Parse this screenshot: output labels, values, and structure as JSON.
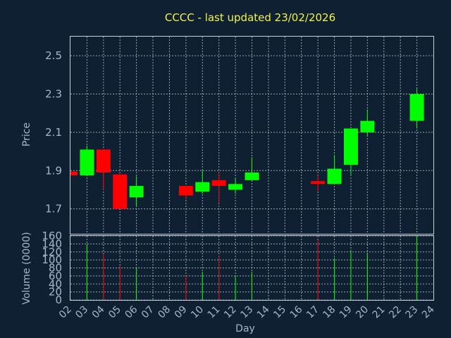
{
  "chart_data": {
    "type": "candlestick",
    "title": "CCCC - last updated 23/02/2026",
    "xlabel": "Day",
    "price_panel": {
      "ylabel": "Price",
      "ylim": [
        1.57,
        2.6
      ],
      "yticks": [
        "1.7",
        "1.9",
        "2.1",
        "2.3",
        "2.5"
      ]
    },
    "volume_panel": {
      "ylabel": "Volume (0000)",
      "ylim": [
        0,
        160
      ],
      "yticks": [
        "0",
        "20",
        "40",
        "60",
        "80",
        "100",
        "120",
        "140",
        "160"
      ]
    },
    "x_ticks": [
      "02",
      "03",
      "04",
      "05",
      "06",
      "07",
      "08",
      "09",
      "10",
      "11",
      "12",
      "13",
      "14",
      "15",
      "16",
      "17",
      "18",
      "19",
      "20",
      "21",
      "22",
      "23",
      "24"
    ],
    "up_color": "#00ff00",
    "down_color": "#ff0000",
    "candles": [
      {
        "day": "02",
        "open": 1.895,
        "high": 1.895,
        "low": 1.875,
        "close": 1.875,
        "volume": 0
      },
      {
        "day": "03",
        "open": 1.875,
        "high": 2.03,
        "low": 1.875,
        "close": 2.01,
        "volume": 140
      },
      {
        "day": "04",
        "open": 2.01,
        "high": 2.01,
        "low": 1.8,
        "close": 1.89,
        "volume": 115
      },
      {
        "day": "05",
        "open": 1.88,
        "high": 1.89,
        "low": 1.7,
        "close": 1.7,
        "volume": 85
      },
      {
        "day": "06",
        "open": 1.76,
        "high": 1.87,
        "low": 1.71,
        "close": 1.82,
        "volume": 80
      },
      {
        "day": "09",
        "open": 1.82,
        "high": 1.82,
        "low": 1.75,
        "close": 1.77,
        "volume": 60
      },
      {
        "day": "10",
        "open": 1.79,
        "high": 1.9,
        "low": 1.78,
        "close": 1.84,
        "volume": 70
      },
      {
        "day": "11",
        "open": 1.85,
        "high": 1.89,
        "low": 1.73,
        "close": 1.82,
        "volume": 110
      },
      {
        "day": "12",
        "open": 1.8,
        "high": 1.86,
        "low": 1.78,
        "close": 1.83,
        "volume": 60
      },
      {
        "day": "13",
        "open": 1.85,
        "high": 1.97,
        "low": 1.85,
        "close": 1.89,
        "volume": 70
      },
      {
        "day": "17",
        "open": 1.845,
        "high": 1.875,
        "low": 1.79,
        "close": 1.83,
        "volume": 150
      },
      {
        "day": "18",
        "open": 1.83,
        "high": 1.98,
        "low": 1.83,
        "close": 1.91,
        "volume": 105
      },
      {
        "day": "19",
        "open": 1.93,
        "high": 2.12,
        "low": 1.88,
        "close": 2.12,
        "volume": 125
      },
      {
        "day": "20",
        "open": 2.1,
        "high": 2.22,
        "low": 2.08,
        "close": 2.16,
        "volume": 115
      },
      {
        "day": "23",
        "open": 2.16,
        "high": 2.33,
        "low": 2.12,
        "close": 2.3,
        "volume": 160
      }
    ]
  }
}
